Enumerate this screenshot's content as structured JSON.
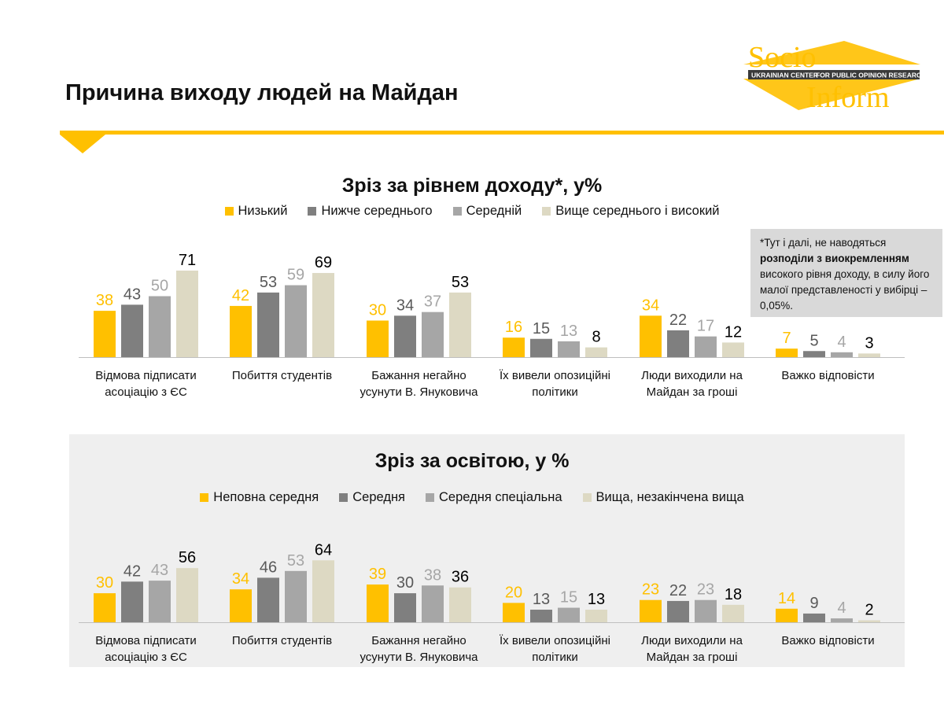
{
  "page": {
    "title": "Причина виходу людей на Майдан",
    "accent_color": "#FFC000"
  },
  "logo": {
    "word_top": "Socio",
    "word_bottom": "Inform",
    "band_left": "UKRAINIAN CENTER",
    "band_right": "FOR PUBLIC OPINION RESEARCH"
  },
  "note": {
    "line_1": "*Тут і далі, не наводяться",
    "line_2_bold": "розподіли з виокремленням",
    "line_3": "високого рівня доходу, в силу його малої представленості у вибірці – 0,05%."
  },
  "chart_data": [
    {
      "type": "bar",
      "title": "Зріз за рівнем доходу*, у%",
      "legend_position": "top",
      "categories": [
        [
          "Відмова підписати",
          "асоціацію з ЄС"
        ],
        [
          "Побиття студентів"
        ],
        [
          "Бажання негайно",
          "усунути В. Януковича"
        ],
        [
          "Їх вивели опозиційні",
          "політики"
        ],
        [
          "Люди виходили на",
          "Майдан за гроші"
        ],
        [
          "Важко відповісти"
        ]
      ],
      "series": [
        {
          "name": "Низький",
          "color": "#FFC000",
          "label_color": "#FFC000",
          "values": [
            38,
            42,
            30,
            16,
            34,
            7
          ]
        },
        {
          "name": "Нижче середнього",
          "color": "#7F7F7F",
          "label_color": "#595959",
          "values": [
            43,
            53,
            34,
            15,
            22,
            5
          ]
        },
        {
          "name": "Середній",
          "color": "#A6A6A6",
          "label_color": "#A6A6A6",
          "values": [
            50,
            59,
            37,
            13,
            17,
            4
          ]
        },
        {
          "name": "Вище середнього і високий",
          "color": "#DDD9C3",
          "label_color": "#000000",
          "values": [
            71,
            69,
            53,
            8,
            12,
            3
          ]
        }
      ]
    },
    {
      "type": "bar",
      "title": "Зріз за освітою, у %",
      "legend_position": "top",
      "categories": [
        [
          "Відмова підписати",
          "асоціацію з ЄС"
        ],
        [
          "Побиття студентів"
        ],
        [
          "Бажання негайно",
          "усунути В. Януковича"
        ],
        [
          "Їх вивели опозиційні",
          "політики"
        ],
        [
          "Люди виходили на",
          "Майдан за гроші"
        ],
        [
          "Важко відповісти"
        ]
      ],
      "series": [
        {
          "name": "Неповна середня",
          "color": "#FFC000",
          "label_color": "#FFC000",
          "values": [
            30,
            34,
            39,
            20,
            23,
            14
          ]
        },
        {
          "name": "Середня",
          "color": "#7F7F7F",
          "label_color": "#595959",
          "values": [
            42,
            46,
            30,
            13,
            22,
            9
          ]
        },
        {
          "name": "Середня спеціальна",
          "color": "#A6A6A6",
          "label_color": "#A6A6A6",
          "values": [
            43,
            53,
            38,
            15,
            23,
            4
          ]
        },
        {
          "name": "Вища, незакінчена вища",
          "color": "#DDD9C3",
          "label_color": "#000000",
          "values": [
            56,
            64,
            36,
            13,
            18,
            2
          ]
        }
      ]
    }
  ]
}
